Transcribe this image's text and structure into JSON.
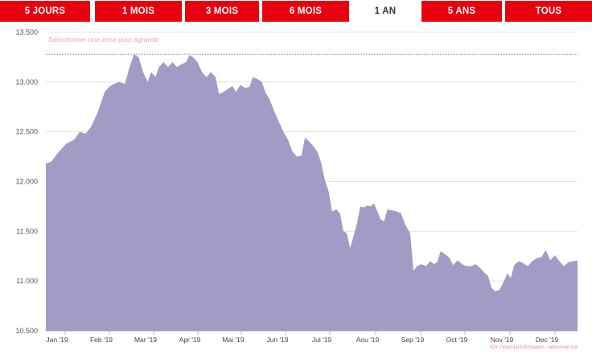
{
  "tabs": [
    {
      "label": "5 JOURS",
      "active": false
    },
    {
      "label": "1 MOIS",
      "active": false
    },
    {
      "label": "3 MOIS",
      "active": false
    },
    {
      "label": "6 MOIS",
      "active": false
    },
    {
      "label": "1 AN",
      "active": true
    },
    {
      "label": "5 ANS",
      "active": false
    },
    {
      "label": "TOUS",
      "active": false
    }
  ],
  "colors": {
    "accent": "#e8000f",
    "area_fill": "#a19bc6",
    "reference_line": "#8a8a8a"
  },
  "zoom_hint": "Sélectionner une zone pour agrandir",
  "credit": "IDX Financial Information - leboursier.ma",
  "chart_data": {
    "type": "area",
    "title": "",
    "xlabel": "",
    "ylabel": "",
    "ylim": [
      10500,
      13500
    ],
    "y_ticks": [
      10500,
      11000,
      11500,
      12000,
      12500,
      13000,
      13500
    ],
    "y_tick_labels": [
      "10.500",
      "11.000",
      "11.500",
      "12.000",
      "12.500",
      "13.000",
      "13.500"
    ],
    "x_ticks": [
      "Jan '19",
      "Feb '19",
      "Mar '19",
      "Apr '19",
      "Mai '19",
      "Jun '19",
      "Jul '19",
      "Aou '19",
      "Sep '19",
      "Oct '19",
      "Nov '19",
      "Dec '19"
    ],
    "max_reference_line": 13280,
    "grid": true,
    "legend": "none",
    "series": [
      {
        "values": [
          [
            0.0,
            12180
          ],
          [
            0.5,
            12200
          ],
          [
            1.0,
            12280
          ],
          [
            1.8,
            12380
          ],
          [
            2.5,
            12420
          ],
          [
            3.0,
            12500
          ],
          [
            3.5,
            12480
          ],
          [
            4.0,
            12550
          ],
          [
            4.6,
            12700
          ],
          [
            5.2,
            12900
          ],
          [
            5.6,
            12950
          ],
          [
            6.0,
            12980
          ],
          [
            6.5,
            13000
          ],
          [
            7.0,
            12980
          ],
          [
            7.4,
            13150
          ],
          [
            7.8,
            13280
          ],
          [
            8.2,
            13250
          ],
          [
            8.6,
            13100
          ],
          [
            9.0,
            13000
          ],
          [
            9.3,
            13100
          ],
          [
            9.7,
            13050
          ],
          [
            10.0,
            13150
          ],
          [
            10.4,
            13200
          ],
          [
            10.8,
            13150
          ],
          [
            11.2,
            13200
          ],
          [
            11.6,
            13150
          ],
          [
            12.0,
            13180
          ],
          [
            12.4,
            13200
          ],
          [
            12.7,
            13270
          ],
          [
            13.0,
            13250
          ],
          [
            13.4,
            13200
          ],
          [
            13.8,
            13100
          ],
          [
            14.2,
            13050
          ],
          [
            14.6,
            13100
          ],
          [
            15.0,
            13050
          ],
          [
            15.3,
            12880
          ],
          [
            15.7,
            12900
          ],
          [
            16.1,
            12930
          ],
          [
            16.5,
            12960
          ],
          [
            16.8,
            12900
          ],
          [
            17.2,
            12970
          ],
          [
            17.6,
            12940
          ],
          [
            18.0,
            12950
          ],
          [
            18.3,
            13050
          ],
          [
            18.7,
            13030
          ],
          [
            19.1,
            13000
          ],
          [
            19.4,
            12900
          ],
          [
            19.8,
            12820
          ],
          [
            20.2,
            12700
          ],
          [
            20.6,
            12600
          ],
          [
            21.0,
            12500
          ],
          [
            21.4,
            12420
          ],
          [
            21.8,
            12300
          ],
          [
            22.2,
            12250
          ],
          [
            22.6,
            12260
          ],
          [
            22.9,
            12440
          ],
          [
            23.3,
            12400
          ],
          [
            23.7,
            12350
          ],
          [
            24.0,
            12300
          ],
          [
            24.3,
            12200
          ],
          [
            24.7,
            12000
          ],
          [
            25.0,
            11900
          ],
          [
            25.3,
            11700
          ],
          [
            25.7,
            11720
          ],
          [
            26.0,
            11680
          ],
          [
            26.3,
            11500
          ],
          [
            26.6,
            11480
          ],
          [
            26.9,
            11330
          ],
          [
            27.2,
            11450
          ],
          [
            27.5,
            11580
          ],
          [
            27.8,
            11750
          ],
          [
            28.1,
            11740
          ],
          [
            28.4,
            11760
          ],
          [
            28.7,
            11750
          ],
          [
            29.0,
            11780
          ],
          [
            29.3,
            11700
          ],
          [
            29.6,
            11620
          ],
          [
            29.9,
            11600
          ],
          [
            30.2,
            11720
          ],
          [
            30.6,
            11710
          ],
          [
            31.0,
            11700
          ],
          [
            31.4,
            11680
          ],
          [
            31.8,
            11560
          ],
          [
            32.2,
            11480
          ],
          [
            32.5,
            11100
          ],
          [
            32.8,
            11150
          ],
          [
            33.2,
            11170
          ],
          [
            33.6,
            11150
          ],
          [
            34.0,
            11200
          ],
          [
            34.3,
            11170
          ],
          [
            34.6,
            11190
          ],
          [
            34.9,
            11300
          ],
          [
            35.3,
            11270
          ],
          [
            35.7,
            11230
          ],
          [
            36.0,
            11160
          ],
          [
            36.4,
            11210
          ],
          [
            36.8,
            11170
          ],
          [
            37.2,
            11150
          ],
          [
            37.6,
            11150
          ],
          [
            38.0,
            11170
          ],
          [
            38.4,
            11130
          ],
          [
            38.8,
            11080
          ],
          [
            39.1,
            11050
          ],
          [
            39.4,
            10930
          ],
          [
            39.7,
            10900
          ],
          [
            40.1,
            10910
          ],
          [
            40.5,
            11000
          ],
          [
            40.8,
            11080
          ],
          [
            41.1,
            11030
          ],
          [
            41.4,
            11160
          ],
          [
            41.8,
            11200
          ],
          [
            42.2,
            11180
          ],
          [
            42.6,
            11150
          ],
          [
            43.0,
            11200
          ],
          [
            43.4,
            11230
          ],
          [
            43.8,
            11240
          ],
          [
            44.2,
            11310
          ],
          [
            44.6,
            11210
          ],
          [
            45.0,
            11260
          ],
          [
            45.4,
            11200
          ],
          [
            45.8,
            11150
          ],
          [
            46.2,
            11190
          ],
          [
            46.6,
            11200
          ],
          [
            47.0,
            11205
          ]
        ],
        "x_unit_note_free": true
      }
    ]
  }
}
